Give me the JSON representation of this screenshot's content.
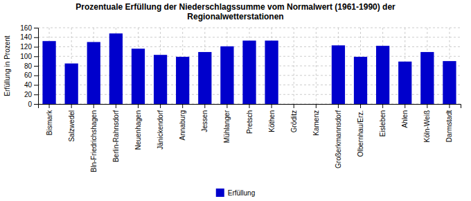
{
  "chart_data": {
    "type": "bar",
    "title": "Prozentuale Erfüllung der Niederschlagssumme vom Normalwert (1961-1990) der\nRegionalwetterstationen",
    "ylabel": "Erfüllung in Prozent",
    "categories": [
      "Bismark",
      "Salzwedel",
      "Bln-Friedrichshagen",
      "Berlin-Rahnsdorf",
      "Neuenhagen",
      "Jänickendorf",
      "Annaburg",
      "Jessen",
      "Mühlanger",
      "Pretsch",
      "Köthen",
      "Gröditz",
      "Kamenz",
      "Großerkmannsdorf",
      "Olbernhau/Erz.",
      "Eisleben",
      "Ahlen",
      "Köln-Weiß",
      "Darmstadt"
    ],
    "series": [
      {
        "name": "Erfüllung",
        "color": "#0000CC",
        "values": [
          132,
          85,
          130,
          148,
          116,
          103,
          99,
          109,
          121,
          133,
          133,
          0,
          0,
          123,
          99,
          122,
          89,
          109,
          90
        ]
      }
    ],
    "ylim": [
      0,
      160
    ],
    "yticks": [
      0,
      20,
      40,
      60,
      80,
      100,
      120,
      140,
      160
    ],
    "grid": true,
    "legend": "bottom"
  }
}
